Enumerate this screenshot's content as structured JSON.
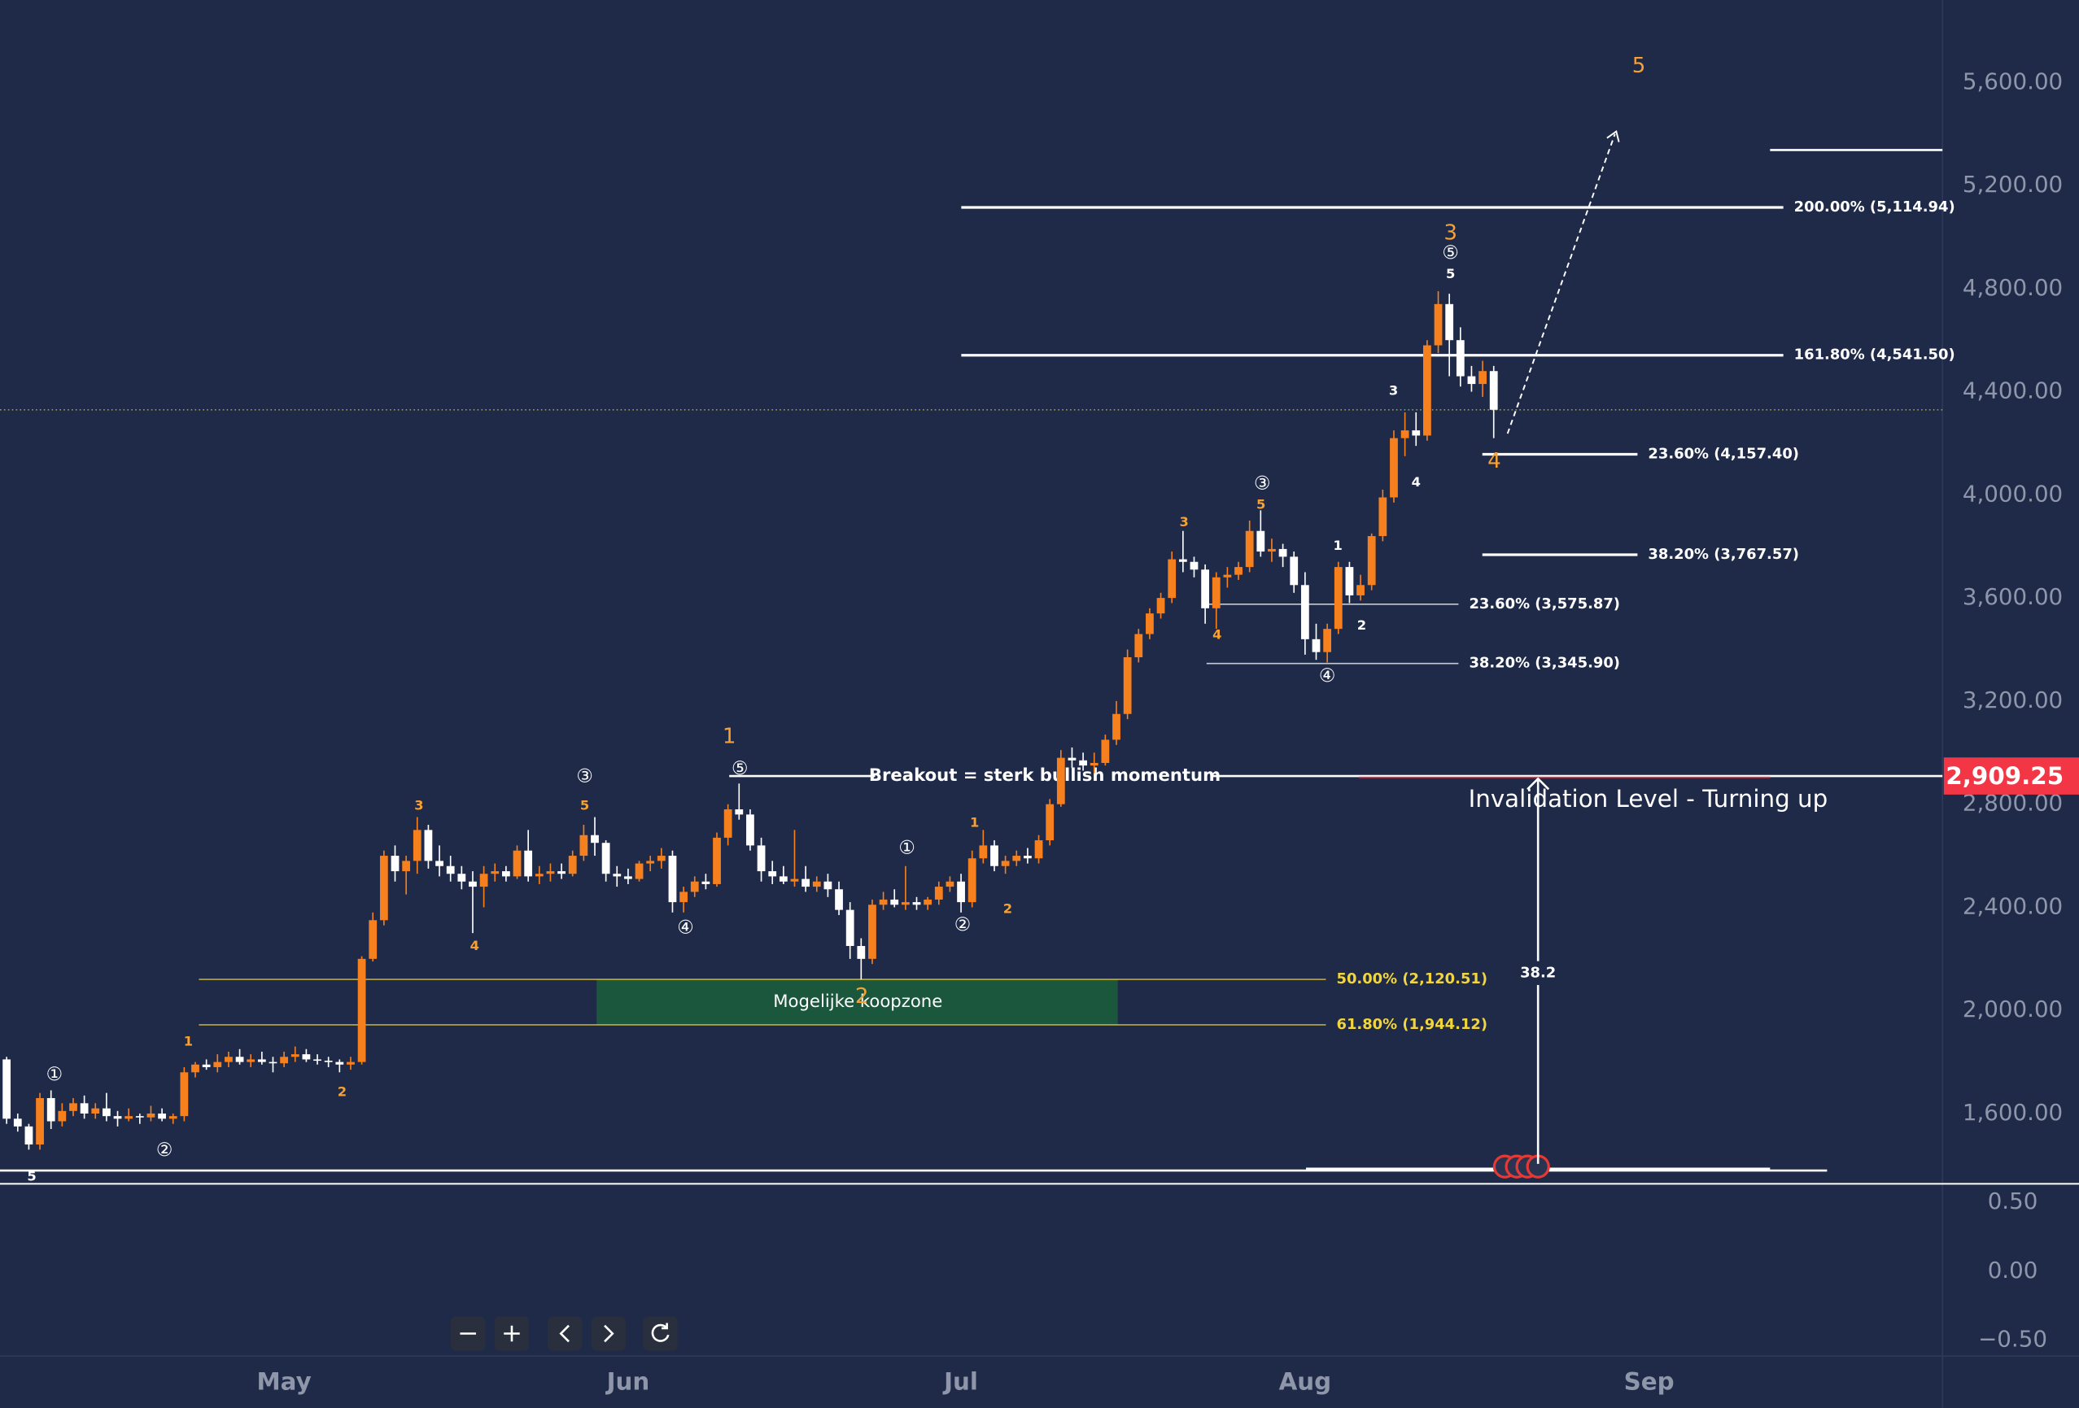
{
  "chart_data": {
    "type": "candlestick",
    "categories": [
      null,
      null,
      null,
      null,
      null,
      null,
      null,
      null,
      null,
      null,
      null,
      null,
      null,
      null,
      null,
      null,
      null,
      null,
      null,
      null,
      null,
      null,
      null,
      null,
      null,
      "May",
      null,
      null,
      null,
      null,
      null,
      null,
      null,
      null,
      null,
      null,
      null,
      null,
      null,
      null,
      null,
      null,
      null,
      null,
      null,
      null,
      null,
      null,
      null,
      null,
      null,
      null,
      null,
      null,
      null,
      null,
      "Jun",
      null,
      null,
      null,
      null,
      null,
      null,
      null,
      null,
      null,
      null,
      null,
      null,
      null,
      null,
      null,
      null,
      null,
      null,
      null,
      null,
      null,
      null,
      null,
      null,
      null,
      null,
      null,
      null,
      null,
      "Jul",
      null,
      null,
      null,
      null,
      null,
      null,
      null,
      null,
      null,
      null,
      null,
      null,
      null,
      null,
      null,
      null,
      null,
      null,
      null,
      null,
      null,
      null,
      null,
      null,
      null,
      null,
      null,
      null,
      null,
      null,
      "Aug",
      null,
      null,
      null,
      null,
      null,
      null,
      null,
      null,
      null,
      null,
      null,
      null,
      null,
      null,
      null,
      null,
      null,
      null,
      null,
      null,
      null,
      null,
      null,
      null,
      null,
      null,
      null,
      null,
      null,
      null,
      "Sep",
      null,
      null,
      null,
      null,
      null,
      null,
      null,
      null,
      null,
      null,
      null,
      null,
      null,
      null,
      null,
      null,
      null,
      null,
      null,
      null,
      null,
      null,
      null,
      null,
      null,
      null
    ],
    "ohlc": [
      [
        1810,
        1820,
        1560,
        1580
      ],
      [
        1580,
        1600,
        1530,
        1550
      ],
      [
        1550,
        1560,
        1460,
        1480
      ],
      [
        1480,
        1680,
        1460,
        1660
      ],
      [
        1660,
        1690,
        1540,
        1570
      ],
      [
        1570,
        1640,
        1550,
        1610
      ],
      [
        1610,
        1660,
        1590,
        1640
      ],
      [
        1640,
        1670,
        1580,
        1600
      ],
      [
        1600,
        1640,
        1580,
        1620
      ],
      [
        1620,
        1680,
        1570,
        1590
      ],
      [
        1590,
        1610,
        1550,
        1580
      ],
      [
        1580,
        1620,
        1570,
        1590
      ],
      [
        1590,
        1600,
        1560,
        1585
      ],
      [
        1585,
        1630,
        1570,
        1600
      ],
      [
        1600,
        1620,
        1570,
        1580
      ],
      [
        1580,
        1600,
        1560,
        1590
      ],
      [
        1590,
        1780,
        1570,
        1760
      ],
      [
        1760,
        1800,
        1740,
        1790
      ],
      [
        1790,
        1810,
        1770,
        1780
      ],
      [
        1780,
        1830,
        1760,
        1800
      ],
      [
        1800,
        1840,
        1780,
        1820
      ],
      [
        1820,
        1850,
        1790,
        1800
      ],
      [
        1800,
        1830,
        1780,
        1810
      ],
      [
        1810,
        1840,
        1790,
        1800
      ],
      [
        1800,
        1820,
        1760,
        1795
      ],
      [
        1795,
        1840,
        1780,
        1820
      ],
      [
        1820,
        1860,
        1800,
        1830
      ],
      [
        1830,
        1850,
        1800,
        1810
      ],
      [
        1810,
        1830,
        1790,
        1805
      ],
      [
        1805,
        1820,
        1780,
        1800
      ],
      [
        1800,
        1810,
        1760,
        1790
      ],
      [
        1790,
        1820,
        1770,
        1800
      ],
      [
        1800,
        2210,
        1790,
        2200
      ],
      [
        2200,
        2380,
        2190,
        2350
      ],
      [
        2350,
        2620,
        2330,
        2600
      ],
      [
        2600,
        2640,
        2500,
        2540
      ],
      [
        2540,
        2600,
        2450,
        2580
      ],
      [
        2580,
        2750,
        2530,
        2700
      ],
      [
        2700,
        2720,
        2550,
        2580
      ],
      [
        2580,
        2640,
        2520,
        2560
      ],
      [
        2560,
        2600,
        2500,
        2530
      ],
      [
        2530,
        2560,
        2470,
        2500
      ],
      [
        2500,
        2540,
        2300,
        2480
      ],
      [
        2480,
        2560,
        2400,
        2530
      ],
      [
        2530,
        2570,
        2500,
        2540
      ],
      [
        2540,
        2560,
        2500,
        2520
      ],
      [
        2520,
        2640,
        2510,
        2620
      ],
      [
        2620,
        2700,
        2500,
        2520
      ],
      [
        2520,
        2560,
        2490,
        2530
      ],
      [
        2530,
        2570,
        2500,
        2540
      ],
      [
        2540,
        2570,
        2510,
        2530
      ],
      [
        2530,
        2620,
        2520,
        2600
      ],
      [
        2600,
        2720,
        2580,
        2680
      ],
      [
        2680,
        2750,
        2600,
        2650
      ],
      [
        2650,
        2660,
        2500,
        2530
      ],
      [
        2530,
        2560,
        2480,
        2520
      ],
      [
        2520,
        2550,
        2490,
        2510
      ],
      [
        2510,
        2580,
        2500,
        2570
      ],
      [
        2570,
        2600,
        2540,
        2580
      ],
      [
        2580,
        2630,
        2550,
        2600
      ],
      [
        2600,
        2620,
        2380,
        2420
      ],
      [
        2420,
        2480,
        2380,
        2460
      ],
      [
        2460,
        2520,
        2440,
        2500
      ],
      [
        2500,
        2530,
        2470,
        2490
      ],
      [
        2490,
        2690,
        2480,
        2670
      ],
      [
        2670,
        2800,
        2640,
        2780
      ],
      [
        2780,
        2880,
        2740,
        2760
      ],
      [
        2760,
        2780,
        2620,
        2640
      ],
      [
        2640,
        2670,
        2500,
        2540
      ],
      [
        2540,
        2580,
        2490,
        2520
      ],
      [
        2520,
        2560,
        2490,
        2500
      ],
      [
        2500,
        2700,
        2480,
        2510
      ],
      [
        2510,
        2560,
        2460,
        2480
      ],
      [
        2480,
        2520,
        2460,
        2500
      ],
      [
        2500,
        2530,
        2440,
        2470
      ],
      [
        2470,
        2500,
        2370,
        2390
      ],
      [
        2390,
        2420,
        2200,
        2250
      ],
      [
        2250,
        2280,
        2120,
        2200
      ],
      [
        2200,
        2430,
        2180,
        2410
      ],
      [
        2410,
        2460,
        2390,
        2430
      ],
      [
        2430,
        2470,
        2400,
        2410
      ],
      [
        2410,
        2560,
        2390,
        2420
      ],
      [
        2420,
        2440,
        2390,
        2410
      ],
      [
        2410,
        2440,
        2390,
        2430
      ],
      [
        2430,
        2500,
        2410,
        2480
      ],
      [
        2480,
        2520,
        2460,
        2500
      ],
      [
        2500,
        2530,
        2380,
        2420
      ],
      [
        2420,
        2620,
        2400,
        2590
      ],
      [
        2590,
        2700,
        2570,
        2640
      ],
      [
        2640,
        2660,
        2540,
        2560
      ],
      [
        2560,
        2600,
        2530,
        2580
      ],
      [
        2580,
        2620,
        2560,
        2600
      ],
      [
        2600,
        2630,
        2570,
        2590
      ],
      [
        2590,
        2680,
        2570,
        2660
      ],
      [
        2660,
        2820,
        2640,
        2800
      ],
      [
        2800,
        3010,
        2790,
        2980
      ],
      [
        2980,
        3020,
        2940,
        2970
      ],
      [
        2970,
        3000,
        2930,
        2950
      ],
      [
        2950,
        3000,
        2920,
        2960
      ],
      [
        2960,
        3070,
        2950,
        3050
      ],
      [
        3050,
        3200,
        3030,
        3150
      ],
      [
        3150,
        3400,
        3130,
        3370
      ],
      [
        3370,
        3480,
        3350,
        3460
      ],
      [
        3460,
        3560,
        3440,
        3540
      ],
      [
        3540,
        3620,
        3520,
        3600
      ],
      [
        3600,
        3780,
        3580,
        3750
      ],
      [
        3750,
        3860,
        3700,
        3740
      ],
      [
        3740,
        3760,
        3680,
        3710
      ],
      [
        3710,
        3730,
        3500,
        3560
      ],
      [
        3560,
        3700,
        3480,
        3680
      ],
      [
        3680,
        3720,
        3640,
        3690
      ],
      [
        3690,
        3740,
        3670,
        3720
      ],
      [
        3720,
        3900,
        3700,
        3860
      ],
      [
        3860,
        3940,
        3760,
        3780
      ],
      [
        3780,
        3830,
        3740,
        3790
      ],
      [
        3790,
        3810,
        3720,
        3760
      ],
      [
        3760,
        3780,
        3620,
        3650
      ],
      [
        3650,
        3700,
        3380,
        3440
      ],
      [
        3440,
        3500,
        3360,
        3390
      ],
      [
        3390,
        3500,
        3350,
        3480
      ],
      [
        3480,
        3740,
        3460,
        3720
      ],
      [
        3720,
        3740,
        3580,
        3610
      ],
      [
        3610,
        3690,
        3590,
        3650
      ],
      [
        3650,
        3850,
        3630,
        3840
      ],
      [
        3840,
        4020,
        3820,
        3990
      ],
      [
        3990,
        4250,
        3970,
        4220
      ],
      [
        4220,
        4320,
        4150,
        4250
      ],
      [
        4250,
        4320,
        4190,
        4230
      ],
      [
        4230,
        4600,
        4210,
        4580
      ],
      [
        4580,
        4790,
        4550,
        4740
      ],
      [
        4740,
        4780,
        4460,
        4600
      ],
      [
        4600,
        4650,
        4420,
        4460
      ],
      [
        4460,
        4500,
        4400,
        4430
      ],
      [
        4430,
        4520,
        4380,
        4480
      ],
      [
        4480,
        4500,
        4220,
        4330
      ],
      null,
      null,
      null,
      null,
      null,
      null,
      null,
      null,
      null,
      null,
      null,
      null,
      null,
      null,
      null,
      null,
      null,
      null,
      null,
      null,
      null,
      null,
      null,
      null,
      null,
      null,
      null,
      null,
      null,
      null,
      null,
      null,
      null,
      null,
      null,
      null,
      null,
      null,
      null,
      null
    ],
    "up_color": "#f7801e",
    "down_color": "#ffffff",
    "ylim": [
      1327.5,
      5918.7
    ],
    "yticks": [
      {
        "value": 5600,
        "label": "5,600.00"
      },
      {
        "value": 5200,
        "label": "5,200.00"
      },
      {
        "value": 4800,
        "label": "4,800.00"
      },
      {
        "value": 4400,
        "label": "4,400.00"
      },
      {
        "value": 4000,
        "label": "4,000.00"
      },
      {
        "value": 3600,
        "label": "3,600.00"
      },
      {
        "value": 3200,
        "label": "3,200.00"
      },
      {
        "value": 2800,
        "label": "2,800.00"
      },
      {
        "value": 2400,
        "label": "2,400.00"
      },
      {
        "value": 2000,
        "label": "2,000.00"
      },
      {
        "value": 1600,
        "label": "1,600.00"
      }
    ],
    "y2lim": [
      -0.615,
      0.635
    ],
    "y2ticks": [
      {
        "value": 0.5,
        "label": "0.50"
      },
      {
        "value": 0,
        "label": "0.00"
      },
      {
        "value": -0.5,
        "label": "−0.50"
      }
    ],
    "grid": false,
    "price_line": {
      "value": 2909.25,
      "label": "2,909.25",
      "color": "#f23645"
    },
    "fib_levels": [
      {
        "label": "200.00% (5,114.94)",
        "value": 5114.94,
        "color": "#ffffff"
      },
      {
        "label": "161.80% (4,541.50)",
        "value": 4541.5,
        "color": "#ffffff"
      },
      {
        "label": "23.60% (4,157.40)",
        "value": 4157.4,
        "color": "#ffffff"
      },
      {
        "label": "38.20% (3,767.57)",
        "value": 3767.57,
        "color": "#ffffff"
      },
      {
        "label": "23.60% (3,575.87)",
        "value": 3575.87,
        "color": "#ffffff"
      },
      {
        "label": "38.20% (3,345.90)",
        "value": 3345.9,
        "color": "#ffffff"
      },
      {
        "label": "50.00% (2,120.51)",
        "value": 2120.51,
        "color": "#f2d53c"
      },
      {
        "label": "61.80% (1,944.12)",
        "value": 1944.12,
        "color": "#f2d53c"
      }
    ],
    "annotations": [
      "Breakout = sterk bullish momentum",
      "Mogelijke koopzone",
      "Invalidation Level - Turning up",
      "38.2"
    ],
    "wave_labels": [
      "①",
      "②",
      "5",
      "1",
      "2",
      "3",
      "4",
      "③",
      "5",
      "④",
      "1",
      "⑤",
      "2",
      "①",
      "1",
      "②",
      "2",
      "3",
      "4",
      "③",
      "5",
      "1",
      "2",
      "④",
      "3",
      "4",
      "3",
      "⑤",
      "5",
      "4",
      "5"
    ]
  }
}
